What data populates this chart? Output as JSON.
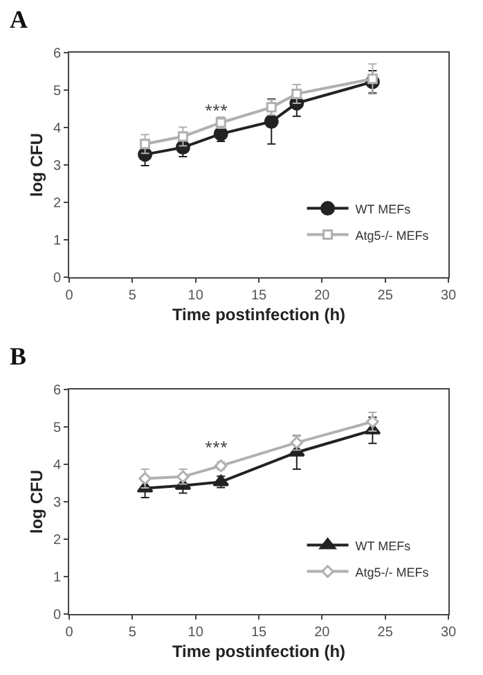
{
  "chart_data": [
    {
      "type": "line",
      "title": "A",
      "xlabel": "Time postinfection (h)",
      "ylabel": "log CFU",
      "xlim": [
        0,
        30
      ],
      "xticks": [
        0,
        5,
        10,
        15,
        20,
        25,
        30
      ],
      "ylim": [
        0,
        6
      ],
      "yticks": [
        0,
        1,
        2,
        3,
        4,
        5,
        6
      ],
      "grid": false,
      "legend": "bottom right",
      "line_style": "solid",
      "annotations": [
        "***"
      ],
      "series": [
        {
          "name": "WT MEFs",
          "color": "#222222",
          "marker": "circle",
          "x": [
            6,
            9,
            12,
            16,
            18,
            24
          ],
          "values": [
            3.28,
            3.47,
            3.83,
            4.16,
            4.65,
            5.22
          ],
          "errors": [
            0.3,
            0.25,
            0.2,
            0.6,
            0.35,
            0.3
          ]
        },
        {
          "name": "Atg5-/- MEFs",
          "color": "#b0b0b0",
          "marker": "square",
          "x": [
            6,
            9,
            12,
            16,
            18,
            24
          ],
          "values": [
            3.56,
            3.76,
            4.13,
            4.54,
            4.9,
            5.3
          ],
          "errors": [
            0.25,
            0.25,
            0.15,
            0.2,
            0.25,
            0.4
          ]
        }
      ]
    },
    {
      "type": "line",
      "title": "B",
      "xlabel": "Time postinfection (h)",
      "ylabel": "log CFU",
      "xlim": [
        0,
        30
      ],
      "xticks": [
        0,
        5,
        10,
        15,
        20,
        25,
        30
      ],
      "ylim": [
        0,
        6
      ],
      "yticks": [
        0,
        1,
        2,
        3,
        4,
        5,
        6
      ],
      "grid": false,
      "legend": "bottom right",
      "line_style": "solid",
      "annotations": [
        "***"
      ],
      "series": [
        {
          "name": "WT MEFs",
          "color": "#222222",
          "marker": "triangle",
          "x": [
            6,
            9,
            12,
            18,
            24
          ],
          "values": [
            3.36,
            3.43,
            3.53,
            4.32,
            4.91
          ],
          "errors": [
            0.25,
            0.2,
            0.15,
            0.45,
            0.35
          ]
        },
        {
          "name": "Atg5-/- MEFs",
          "color": "#b0b0b0",
          "marker": "diamond",
          "x": [
            6,
            9,
            12,
            18,
            24
          ],
          "values": [
            3.62,
            3.67,
            3.96,
            4.58,
            5.14
          ],
          "errors": [
            0.25,
            0.2,
            0.1,
            0.2,
            0.25
          ]
        }
      ]
    }
  ]
}
